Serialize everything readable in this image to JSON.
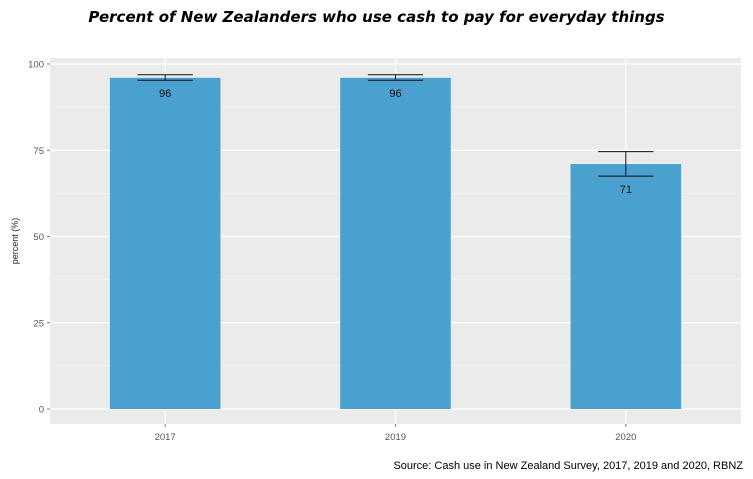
{
  "chart_data": {
    "type": "bar",
    "title": "Percent of New Zealanders who use cash to pay for everyday things",
    "xlabel": "",
    "ylabel": "percent (%)",
    "categories": [
      "2017",
      "2019",
      "2020"
    ],
    "values": [
      96,
      96,
      71
    ],
    "data_labels": [
      "96",
      "96",
      "71"
    ],
    "error_low": [
      95.3,
      95.3,
      67.5
    ],
    "error_high": [
      96.9,
      96.9,
      74.6
    ],
    "ylim": [
      0,
      100
    ],
    "yticks": [
      0,
      25,
      50,
      75,
      100
    ],
    "grid": true,
    "bar_color": "#4aa0ce",
    "panel_color": "#ebebeb",
    "source": "Source: Cash use in New Zealand Survey, 2017, 2019 and 2020, RBNZ"
  }
}
